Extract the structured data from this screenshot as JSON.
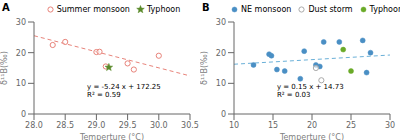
{
  "chart_data": [
    {
      "type": "scatter",
      "title": "A",
      "x_label": "Temperture (°C)",
      "y_label": "δ¹¹B(‰)",
      "xlim": [
        28.0,
        30.5
      ],
      "ylim": [
        0.0,
        30.0
      ],
      "xticks": [
        {
          "value": 28.0,
          "label": "28.0"
        },
        {
          "value": 28.5,
          "label": "28.5"
        },
        {
          "value": 29.0,
          "label": "29.0"
        },
        {
          "value": 29.5,
          "label": "29.5"
        },
        {
          "value": 30.0,
          "label": "30.0"
        },
        {
          "value": 30.5,
          "label": "30.5"
        }
      ],
      "yticks": [
        0,
        10,
        20,
        30
      ],
      "legend": "top",
      "series": [
        {
          "name": "Summer monsoon",
          "color": "#e8837a",
          "marker": "open_circle",
          "x": [
            28.3,
            28.5,
            29.0,
            29.05,
            29.15,
            29.5,
            29.6,
            30.0
          ],
          "values": [
            22.5,
            23.5,
            20.2,
            20.3,
            15.5,
            16.5,
            14.5,
            19.0
          ]
        },
        {
          "name": "Typhoon",
          "color": "#5a8a2a",
          "marker": "star",
          "x": [
            29.2
          ],
          "values": [
            15.2
          ]
        }
      ],
      "trendline": {
        "slope": -5.24,
        "intercept": 172.25,
        "color": "#e8837a",
        "line_style": "dashed"
      },
      "annotations": [
        {
          "text": "y = -5.24 x + 172.25\nR² = 0.59",
          "x": 28.85,
          "y": 5.0
        }
      ]
    },
    {
      "type": "scatter",
      "title": "B",
      "x_label": "Temperture (°C)",
      "y_label": "δ¹¹B(‰)",
      "xlim": [
        10.0,
        30.0
      ],
      "ylim": [
        0.0,
        30.0
      ],
      "xticks": [
        10,
        15,
        20,
        25,
        30
      ],
      "yticks": [
        0,
        10,
        20,
        30
      ],
      "legend": "top",
      "series": [
        {
          "name": "NE monsoon",
          "color": "#4a8fc4",
          "marker": "circle",
          "x": [
            12.5,
            14.5,
            14.8,
            15.5,
            16.5,
            18.5,
            19.0,
            20.5,
            21.0,
            21.5,
            23.5,
            26.5,
            27.0,
            27.5
          ],
          "values": [
            16.0,
            19.5,
            19.0,
            14.5,
            14.0,
            11.5,
            20.5,
            16.0,
            15.5,
            23.5,
            23.5,
            24.0,
            13.5,
            20.0
          ]
        },
        {
          "name": "Dust storm",
          "color": "#aaaaaa",
          "marker": "open_circle",
          "x": [
            20.5,
            21.2
          ],
          "values": [
            15.0,
            11.0
          ]
        },
        {
          "name": "Typhoon",
          "color": "#6aaa28",
          "marker": "circle",
          "x": [
            24.0,
            25.0
          ],
          "values": [
            21.0,
            14.0
          ]
        }
      ],
      "trendline": {
        "slope": 0.15,
        "intercept": 14.73,
        "color": "#6ab0d8",
        "line_style": "dashed"
      },
      "annotations": [
        {
          "text": "y = 0.15 x + 14.73\nR² = 0.03",
          "x": 15.5,
          "y": 5.0
        }
      ]
    }
  ]
}
